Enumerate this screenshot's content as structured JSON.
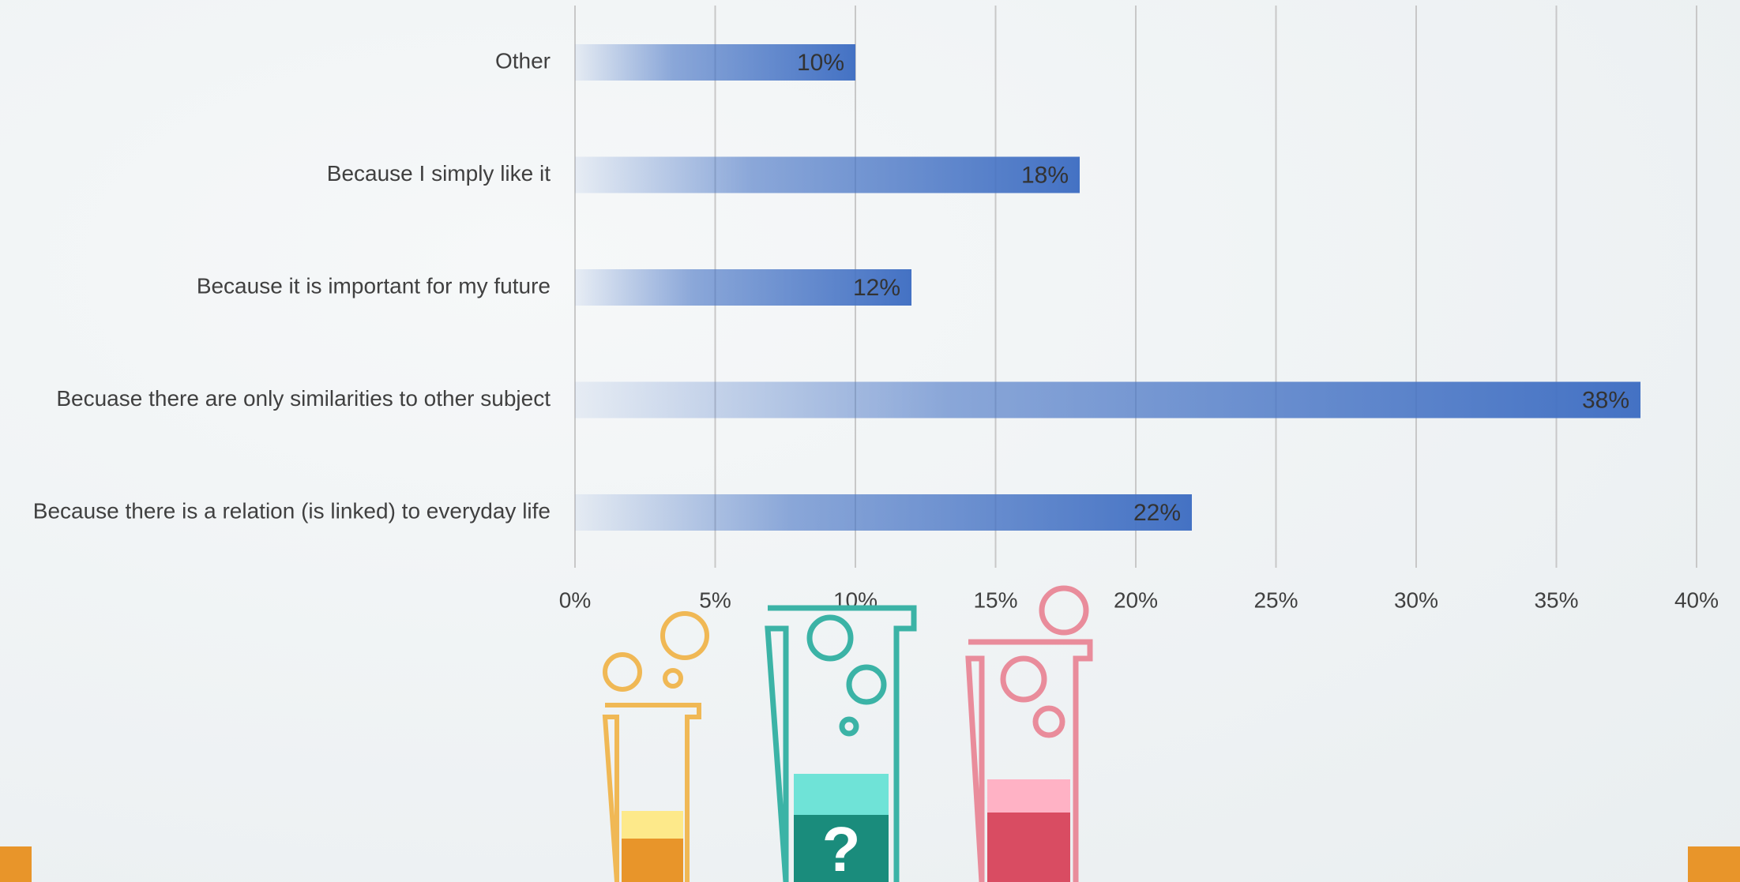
{
  "chart_data": {
    "type": "barh",
    "categories": [
      "Other",
      "Because I simply like it",
      "Because it is important for my future",
      "Becuase there are only similarities to other subject",
      "Because there is a relation (is linked) to everyday life"
    ],
    "values": [
      10,
      18,
      12,
      38,
      22
    ],
    "value_labels": [
      "10%",
      "18%",
      "12%",
      "38%",
      "22%"
    ],
    "color": "#4472c4",
    "xlim": [
      0,
      40
    ],
    "xticks": [
      {
        "value": 0,
        "label": "0%"
      },
      {
        "value": 5,
        "label": "5%"
      },
      {
        "value": 10,
        "label": "10%"
      },
      {
        "value": 15,
        "label": "15%"
      },
      {
        "value": 20,
        "label": "20%"
      },
      {
        "value": 25,
        "label": "25%"
      },
      {
        "value": 30,
        "label": "30%"
      },
      {
        "value": 35,
        "label": "35%"
      },
      {
        "value": 40,
        "label": "40%"
      }
    ],
    "grid": true
  }
}
